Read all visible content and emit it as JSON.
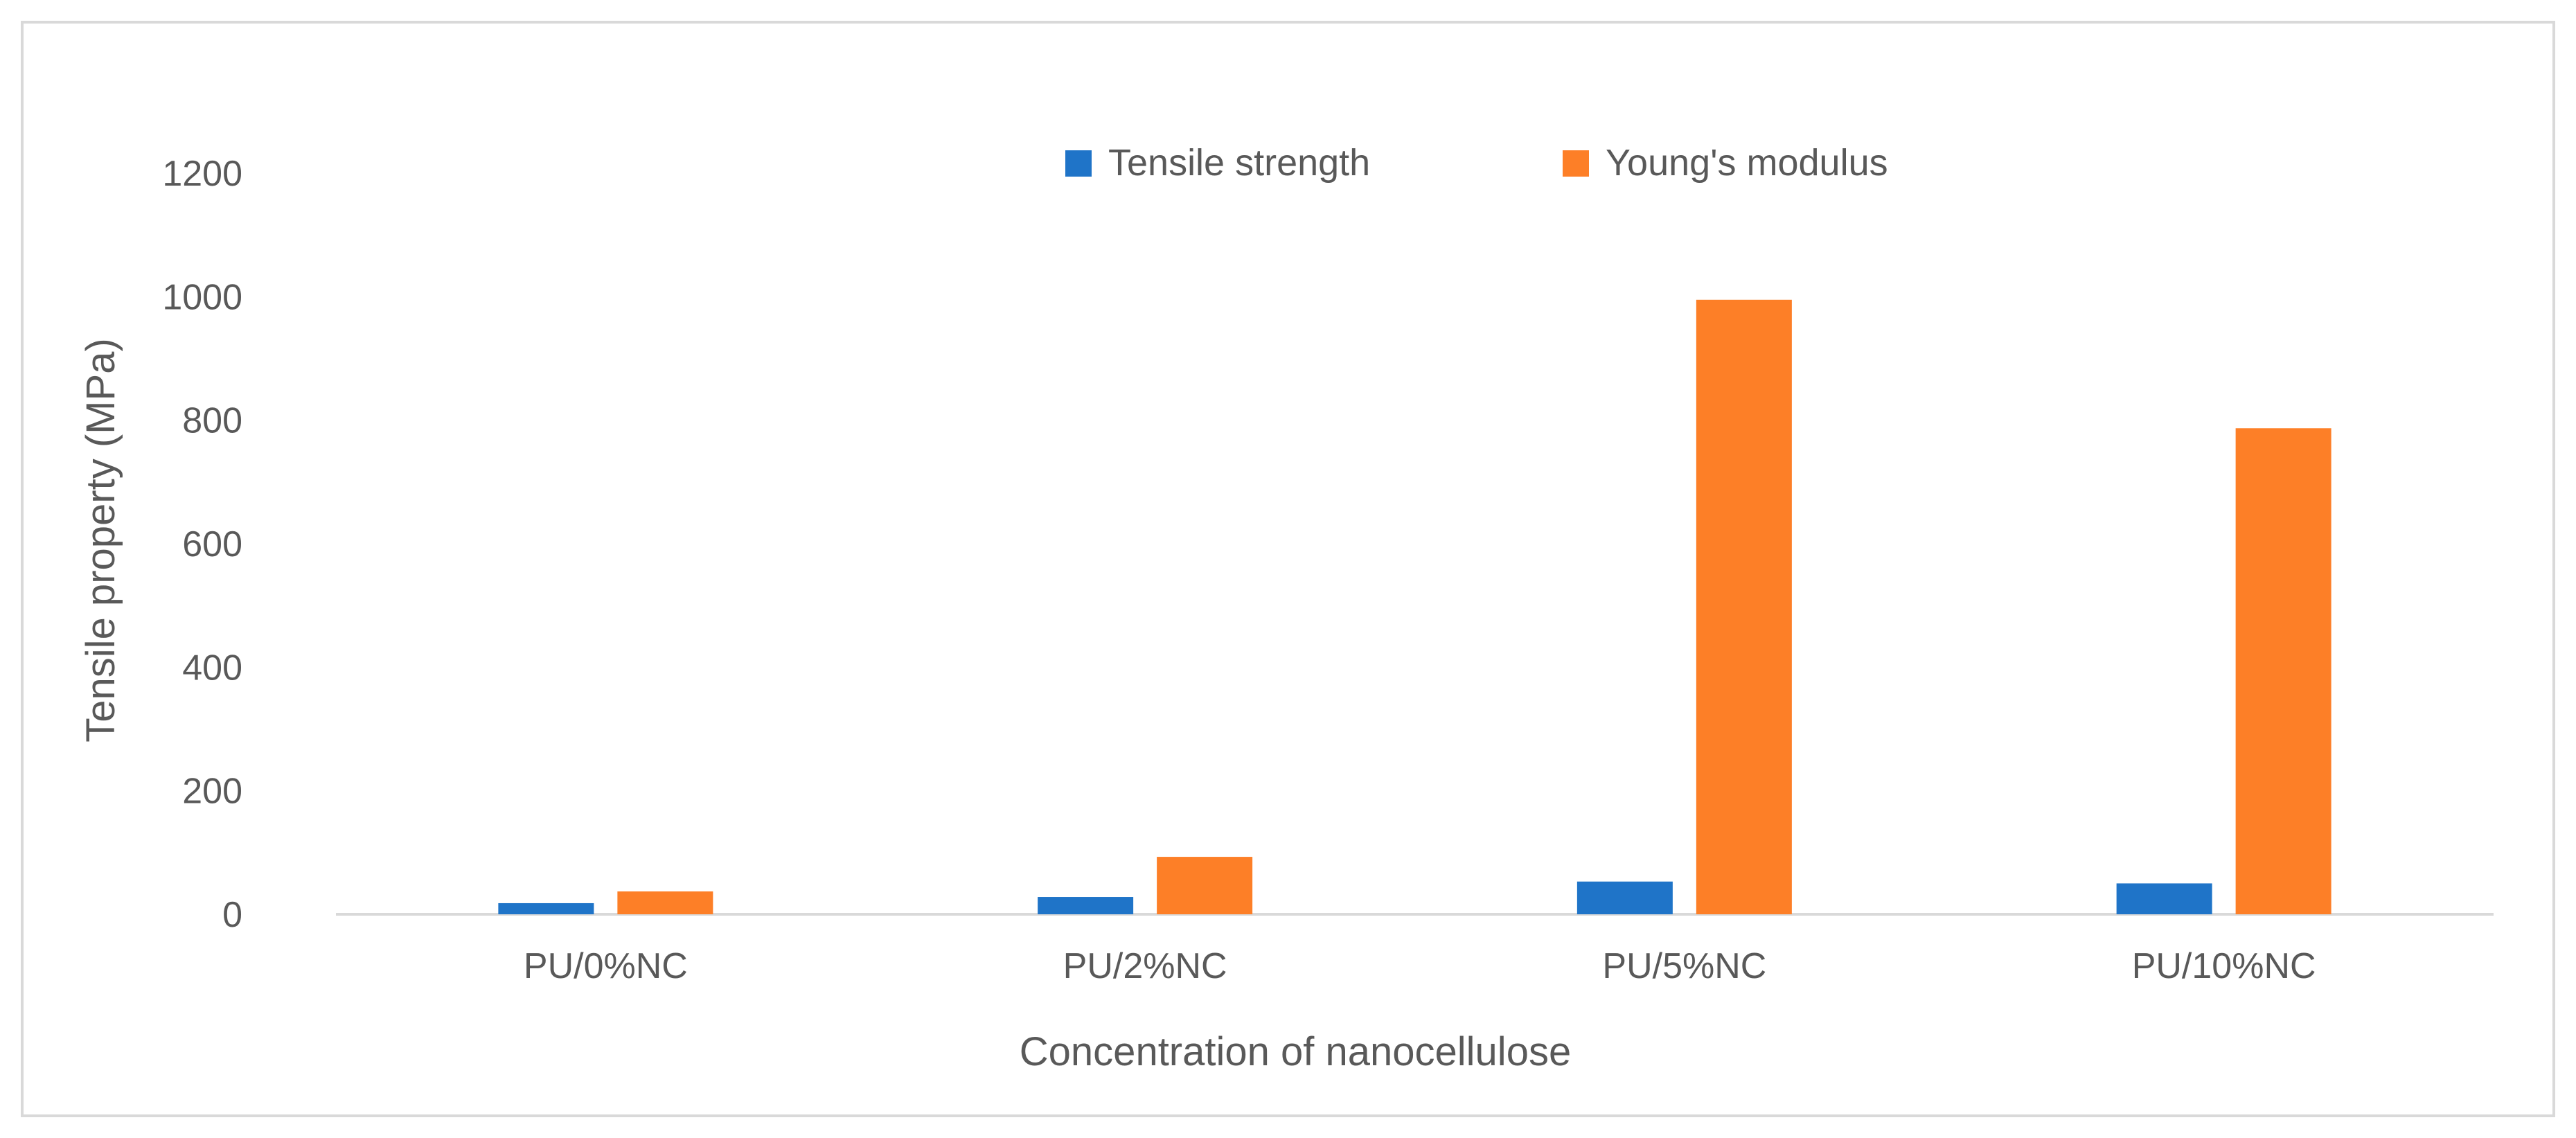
{
  "chart_data": {
    "type": "bar",
    "title": "",
    "xlabel": "Concentration of nanocellulose",
    "ylabel": "Tensile property (MPa)",
    "categories": [
      "PU/0%NC",
      "PU/2%NC",
      "PU/5%NC",
      "PU/10%NC"
    ],
    "series": [
      {
        "name": "Tensile strength",
        "color": "#1f74c8",
        "values": [
          18,
          28,
          53,
          50
        ]
      },
      {
        "name": "Young's modulus",
        "color": "#fd7f27",
        "values": [
          37,
          93,
          995,
          787
        ]
      }
    ],
    "ylim": [
      0,
      1200
    ],
    "yticks": [
      0,
      200,
      400,
      600,
      800,
      1000,
      1200
    ],
    "grid": false,
    "legend_position": "top-center"
  }
}
